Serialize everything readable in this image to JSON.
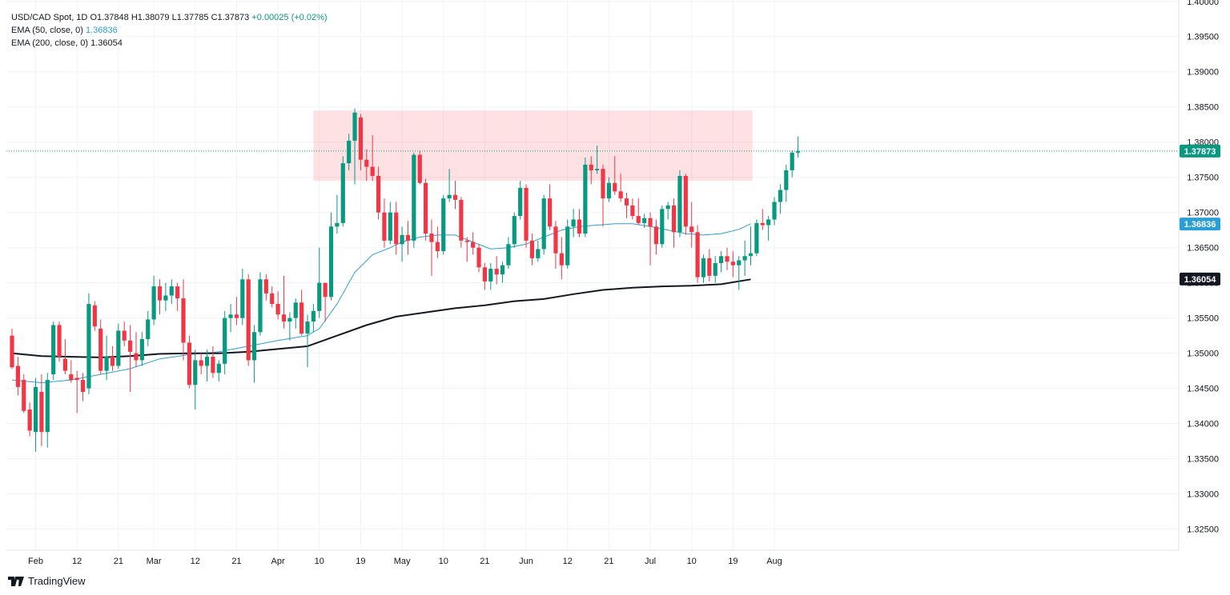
{
  "chart_data": {
    "type": "candlestick",
    "symbol_line": {
      "symbol": "USD/CAD Spot, 1D",
      "o": "O1.37848",
      "h": "H1.38079",
      "l": "L1.37785",
      "c": "C1.37873",
      "chg": "+0.00025 (+0.02%)"
    },
    "indicators": [
      {
        "label": "EMA (50, close, 0)",
        "value": "1.36836",
        "color": "#2a9fd6"
      },
      {
        "label": "EMA (200, close, 0)",
        "value": "1.36054",
        "color": "#131722"
      }
    ],
    "ylim": [
      1.322,
      1.4002
    ],
    "y_ticks": [
      "1.40000",
      "1.39500",
      "1.39000",
      "1.38500",
      "1.38000",
      "1.37500",
      "1.37000",
      "1.36500",
      "1.36000",
      "1.35500",
      "1.35000",
      "1.34500",
      "1.34000",
      "1.33500",
      "1.33000",
      "1.32500"
    ],
    "x_ticks": [
      {
        "label": "Feb",
        "i": 4
      },
      {
        "label": "12",
        "i": 11
      },
      {
        "label": "21",
        "i": 18
      },
      {
        "label": "Mar",
        "i": 24
      },
      {
        "label": "12",
        "i": 31
      },
      {
        "label": "21",
        "i": 38
      },
      {
        "label": "Apr",
        "i": 45
      },
      {
        "label": "10",
        "i": 52
      },
      {
        "label": "19",
        "i": 59
      },
      {
        "label": "May",
        "i": 66
      },
      {
        "label": "10",
        "i": 73
      },
      {
        "label": "21",
        "i": 80
      },
      {
        "label": "Jun",
        "i": 87
      },
      {
        "label": "12",
        "i": 94
      },
      {
        "label": "21",
        "i": 101
      },
      {
        "label": "Jul",
        "i": 108
      },
      {
        "label": "10",
        "i": 115
      },
      {
        "label": "19",
        "i": 122
      },
      {
        "label": "Aug",
        "i": 129
      }
    ],
    "price_labels": [
      {
        "text": "1.37873",
        "value": 1.37873,
        "bg": "#089981",
        "fg": "#ffffff"
      },
      {
        "text": "1.36836",
        "value": 1.36836,
        "bg": "#2a9fd6",
        "fg": "#ffffff"
      },
      {
        "text": "1.36054",
        "value": 1.36054,
        "bg": "#131722",
        "fg": "#ffffff"
      }
    ],
    "resistance_zone": {
      "from_i": 51,
      "to_i": 125.3,
      "top": 1.3845,
      "bottom": 1.3745,
      "color": "rgba(242,54,69,0.15)"
    },
    "last_price": 1.37873,
    "colors": {
      "up": "#089981",
      "down": "#f23645",
      "ema50": "#2a9fd6",
      "ema200": "#131722"
    },
    "candles": [
      [
        1.3525,
        1.3535,
        1.3478,
        1.348
      ],
      [
        1.3482,
        1.3495,
        1.344,
        1.3452
      ],
      [
        1.3462,
        1.347,
        1.3415,
        1.3418
      ],
      [
        1.342,
        1.343,
        1.3382,
        1.339
      ],
      [
        1.3388,
        1.3465,
        1.336,
        1.3452
      ],
      [
        1.3445,
        1.347,
        1.3368,
        1.3388
      ],
      [
        1.3388,
        1.3472,
        1.3366,
        1.3462
      ],
      [
        1.347,
        1.3545,
        1.3462,
        1.354
      ],
      [
        1.354,
        1.3545,
        1.3488,
        1.3495
      ],
      [
        1.3492,
        1.352,
        1.347,
        1.3475
      ],
      [
        1.347,
        1.349,
        1.3458,
        1.3462
      ],
      [
        1.3465,
        1.3475,
        1.3415,
        1.3462
      ],
      [
        1.3462,
        1.3472,
        1.3432,
        1.3445
      ],
      [
        1.345,
        1.3585,
        1.3442,
        1.357
      ],
      [
        1.3568,
        1.3574,
        1.3532,
        1.3538
      ],
      [
        1.3535,
        1.3548,
        1.347,
        1.3475
      ],
      [
        1.3475,
        1.3525,
        1.3462,
        1.3495
      ],
      [
        1.3495,
        1.351,
        1.3475,
        1.3482
      ],
      [
        1.3482,
        1.3542,
        1.3478,
        1.3532
      ],
      [
        1.3532,
        1.3545,
        1.351,
        1.3518
      ],
      [
        1.3518,
        1.354,
        1.3445,
        1.3502
      ],
      [
        1.35,
        1.353,
        1.348,
        1.349
      ],
      [
        1.349,
        1.353,
        1.3482,
        1.352
      ],
      [
        1.352,
        1.356,
        1.351,
        1.3548
      ],
      [
        1.3548,
        1.361,
        1.354,
        1.3595
      ],
      [
        1.3595,
        1.3605,
        1.3555,
        1.3575
      ],
      [
        1.3575,
        1.36,
        1.356,
        1.3582
      ],
      [
        1.3582,
        1.3605,
        1.357,
        1.3595
      ],
      [
        1.3595,
        1.36,
        1.356,
        1.3578
      ],
      [
        1.3578,
        1.3605,
        1.349,
        1.3515
      ],
      [
        1.3515,
        1.3525,
        1.345,
        1.3455
      ],
      [
        1.3455,
        1.3505,
        1.342,
        1.349
      ],
      [
        1.349,
        1.35,
        1.347,
        1.3482
      ],
      [
        1.3482,
        1.3505,
        1.346,
        1.3495
      ],
      [
        1.3495,
        1.351,
        1.3465,
        1.3472
      ],
      [
        1.3472,
        1.349,
        1.346,
        1.3485
      ],
      [
        1.3485,
        1.356,
        1.347,
        1.355
      ],
      [
        1.355,
        1.357,
        1.353,
        1.3555
      ],
      [
        1.3555,
        1.358,
        1.354,
        1.355
      ],
      [
        1.355,
        1.362,
        1.354,
        1.3605
      ],
      [
        1.3605,
        1.3612,
        1.3482,
        1.349
      ],
      [
        1.349,
        1.354,
        1.3458,
        1.353
      ],
      [
        1.353,
        1.3615,
        1.3525,
        1.3605
      ],
      [
        1.3605,
        1.3612,
        1.3575,
        1.3585
      ],
      [
        1.3585,
        1.3595,
        1.3565,
        1.357
      ],
      [
        1.357,
        1.3588,
        1.3548,
        1.3555
      ],
      [
        1.3555,
        1.361,
        1.3535,
        1.3545
      ],
      [
        1.3545,
        1.3558,
        1.3518,
        1.355
      ],
      [
        1.355,
        1.3578,
        1.3535,
        1.3572
      ],
      [
        1.3572,
        1.359,
        1.3525,
        1.3528
      ],
      [
        1.3528,
        1.3555,
        1.348,
        1.3545
      ],
      [
        1.3545,
        1.357,
        1.353,
        1.356
      ],
      [
        1.356,
        1.365,
        1.355,
        1.36
      ],
      [
        1.36,
        1.36,
        1.3545,
        1.358
      ],
      [
        1.358,
        1.37,
        1.3575,
        1.368
      ],
      [
        1.368,
        1.3725,
        1.367,
        1.3685
      ],
      [
        1.3685,
        1.378,
        1.368,
        1.377
      ],
      [
        1.377,
        1.3812,
        1.376,
        1.3802
      ],
      [
        1.3802,
        1.3848,
        1.374,
        1.3842
      ],
      [
        1.3835,
        1.384,
        1.376,
        1.3775
      ],
      [
        1.3775,
        1.379,
        1.3745,
        1.3765
      ],
      [
        1.3765,
        1.381,
        1.3745,
        1.3752
      ],
      [
        1.3752,
        1.3765,
        1.369,
        1.37
      ],
      [
        1.37,
        1.372,
        1.365,
        1.366
      ],
      [
        1.366,
        1.3715,
        1.3655,
        1.37
      ],
      [
        1.37,
        1.3715,
        1.364,
        1.3655
      ],
      [
        1.3655,
        1.368,
        1.363,
        1.3668
      ],
      [
        1.3668,
        1.3688,
        1.364,
        1.366
      ],
      [
        1.366,
        1.3785,
        1.365,
        1.3782
      ],
      [
        1.3782,
        1.3788,
        1.374,
        1.3742
      ],
      [
        1.3742,
        1.3748,
        1.366,
        1.367
      ],
      [
        1.367,
        1.369,
        1.361,
        1.3658
      ],
      [
        1.3658,
        1.368,
        1.3635,
        1.3645
      ],
      [
        1.3645,
        1.3725,
        1.364,
        1.372
      ],
      [
        1.372,
        1.3762,
        1.3715,
        1.3725
      ],
      [
        1.3725,
        1.3745,
        1.3705,
        1.3718
      ],
      [
        1.3718,
        1.3722,
        1.365,
        1.366
      ],
      [
        1.366,
        1.3665,
        1.363,
        1.3658
      ],
      [
        1.3658,
        1.3672,
        1.364,
        1.365
      ],
      [
        1.365,
        1.3655,
        1.3615,
        1.3622
      ],
      [
        1.3622,
        1.3628,
        1.359,
        1.3602
      ],
      [
        1.3602,
        1.3628,
        1.359,
        1.362
      ],
      [
        1.362,
        1.3638,
        1.3598,
        1.3612
      ],
      [
        1.3612,
        1.363,
        1.36,
        1.3625
      ],
      [
        1.3625,
        1.3665,
        1.362,
        1.3655
      ],
      [
        1.3655,
        1.37,
        1.365,
        1.3695
      ],
      [
        1.3695,
        1.3745,
        1.369,
        1.3735
      ],
      [
        1.3735,
        1.374,
        1.365,
        1.366
      ],
      [
        1.366,
        1.367,
        1.3625,
        1.3635
      ],
      [
        1.3635,
        1.366,
        1.363,
        1.3648
      ],
      [
        1.3648,
        1.3725,
        1.364,
        1.372
      ],
      [
        1.372,
        1.374,
        1.3675,
        1.368
      ],
      [
        1.368,
        1.3688,
        1.362,
        1.3642
      ],
      [
        1.3642,
        1.3665,
        1.3605,
        1.3625
      ],
      [
        1.3625,
        1.369,
        1.362,
        1.368
      ],
      [
        1.368,
        1.3705,
        1.3665,
        1.369
      ],
      [
        1.369,
        1.3705,
        1.3665,
        1.367
      ],
      [
        1.367,
        1.3778,
        1.3665,
        1.3768
      ],
      [
        1.3768,
        1.378,
        1.374,
        1.376
      ],
      [
        1.376,
        1.3795,
        1.3755,
        1.3762
      ],
      [
        1.3762,
        1.3768,
        1.368,
        1.372
      ],
      [
        1.372,
        1.375,
        1.3715,
        1.3742
      ],
      [
        1.3742,
        1.378,
        1.3725,
        1.373
      ],
      [
        1.373,
        1.3755,
        1.3715,
        1.372
      ],
      [
        1.372,
        1.3728,
        1.3692,
        1.371
      ],
      [
        1.371,
        1.372,
        1.369,
        1.3695
      ],
      [
        1.3695,
        1.372,
        1.3682,
        1.3685
      ],
      [
        1.3685,
        1.3698,
        1.3678,
        1.3692
      ],
      [
        1.3692,
        1.37,
        1.3625,
        1.368
      ],
      [
        1.368,
        1.369,
        1.364,
        1.3655
      ],
      [
        1.3655,
        1.371,
        1.365,
        1.3705
      ],
      [
        1.3705,
        1.3715,
        1.369,
        1.371
      ],
      [
        1.371,
        1.372,
        1.365,
        1.3672
      ],
      [
        1.3672,
        1.376,
        1.3665,
        1.3752
      ],
      [
        1.3752,
        1.3755,
        1.3668,
        1.368
      ],
      [
        1.368,
        1.3715,
        1.365,
        1.3672
      ],
      [
        1.3672,
        1.3682,
        1.36,
        1.3608
      ],
      [
        1.3608,
        1.364,
        1.36,
        1.3635
      ],
      [
        1.3635,
        1.3648,
        1.3602,
        1.361
      ],
      [
        1.361,
        1.3638,
        1.36,
        1.3628
      ],
      [
        1.3628,
        1.3645,
        1.3615,
        1.3638
      ],
      [
        1.3638,
        1.365,
        1.3618,
        1.363
      ],
      [
        1.363,
        1.3645,
        1.3608,
        1.3625
      ],
      [
        1.3625,
        1.3638,
        1.359,
        1.3632
      ],
      [
        1.3632,
        1.366,
        1.361,
        1.3638
      ],
      [
        1.3638,
        1.368,
        1.3625,
        1.3642
      ],
      [
        1.3642,
        1.369,
        1.3638,
        1.3685
      ],
      [
        1.3685,
        1.3705,
        1.3675,
        1.3682
      ],
      [
        1.3682,
        1.3695,
        1.366,
        1.369
      ],
      [
        1.369,
        1.3722,
        1.3682,
        1.3715
      ],
      [
        1.3715,
        1.374,
        1.3698,
        1.3732
      ],
      [
        1.3732,
        1.3768,
        1.3715,
        1.376
      ],
      [
        1.376,
        1.3788,
        1.375,
        1.3785
      ],
      [
        1.3785,
        1.3808,
        1.3778,
        1.3787
      ]
    ],
    "ema50": [
      [
        0,
        1.3462
      ],
      [
        5,
        1.3458
      ],
      [
        10,
        1.3462
      ],
      [
        15,
        1.347
      ],
      [
        20,
        1.3478
      ],
      [
        25,
        1.3492
      ],
      [
        30,
        1.3498
      ],
      [
        35,
        1.3502
      ],
      [
        40,
        1.351
      ],
      [
        45,
        1.3518
      ],
      [
        50,
        1.3525
      ],
      [
        52,
        1.3535
      ],
      [
        55,
        1.357
      ],
      [
        58,
        1.3615
      ],
      [
        61,
        1.364
      ],
      [
        64,
        1.365
      ],
      [
        66,
        1.3658
      ],
      [
        69,
        1.3665
      ],
      [
        72,
        1.3668
      ],
      [
        75,
        1.3668
      ],
      [
        78,
        1.3658
      ],
      [
        81,
        1.3648
      ],
      [
        84,
        1.365
      ],
      [
        87,
        1.3655
      ],
      [
        90,
        1.3665
      ],
      [
        93,
        1.3675
      ],
      [
        96,
        1.368
      ],
      [
        99,
        1.3682
      ],
      [
        102,
        1.3684
      ],
      [
        105,
        1.3684
      ],
      [
        108,
        1.368
      ],
      [
        111,
        1.3675
      ],
      [
        114,
        1.367
      ],
      [
        117,
        1.3668
      ],
      [
        120,
        1.367
      ],
      [
        123,
        1.3676
      ],
      [
        125,
        1.3684
      ]
    ],
    "ema200": [
      [
        0,
        1.35
      ],
      [
        5,
        1.3496
      ],
      [
        10,
        1.3495
      ],
      [
        15,
        1.3494
      ],
      [
        20,
        1.3496
      ],
      [
        25,
        1.3499
      ],
      [
        30,
        1.35
      ],
      [
        35,
        1.35
      ],
      [
        40,
        1.3502
      ],
      [
        45,
        1.3506
      ],
      [
        50,
        1.351
      ],
      [
        55,
        1.3525
      ],
      [
        60,
        1.354
      ],
      [
        65,
        1.3552
      ],
      [
        70,
        1.3558
      ],
      [
        75,
        1.3564
      ],
      [
        80,
        1.3568
      ],
      [
        85,
        1.3574
      ],
      [
        90,
        1.3577
      ],
      [
        95,
        1.3584
      ],
      [
        100,
        1.359
      ],
      [
        105,
        1.3593
      ],
      [
        110,
        1.3595
      ],
      [
        115,
        1.3596
      ],
      [
        120,
        1.3598
      ],
      [
        125,
        1.3605
      ]
    ]
  }
}
